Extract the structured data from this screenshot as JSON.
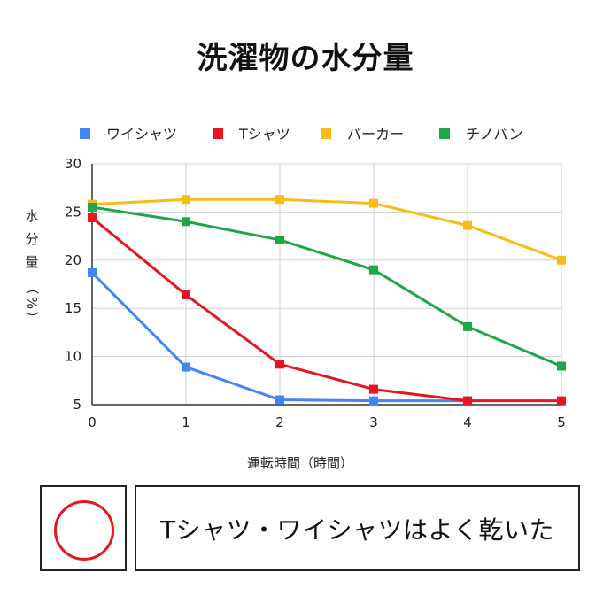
{
  "title": "洗濯物の水分量",
  "colors": {
    "ワイシャツ": "#4285f4",
    "Tシャツ": "#e8141f",
    "パーカー": "#f9bb15",
    "チノパン": "#1ea64a",
    "grid": "#d0d0d0",
    "axis": "#333333",
    "verdict_ring": "#e8141f"
  },
  "chart_data": {
    "type": "line",
    "title": "洗濯物の水分量",
    "xlabel": "運転時間（時間）",
    "ylabel": "水分量（%）",
    "ylabel_chars": [
      "水",
      "分",
      "量"
    ],
    "ylabel_unit_chars": [
      "（",
      "%",
      "）"
    ],
    "x": [
      0,
      1,
      2,
      3,
      4,
      5
    ],
    "xlim": [
      0,
      5
    ],
    "ylim": [
      5,
      30
    ],
    "yticks": [
      5,
      10,
      15,
      20,
      25,
      30
    ],
    "grid": true,
    "legend": "top",
    "marker": "square",
    "series": [
      {
        "name": "ワイシャツ",
        "values": [
          18.7,
          8.9,
          5.5,
          5.4,
          5.4,
          null
        ]
      },
      {
        "name": "Tシャツ",
        "values": [
          24.4,
          16.4,
          9.2,
          6.6,
          5.4,
          5.4
        ]
      },
      {
        "name": "パーカー",
        "values": [
          25.8,
          26.3,
          26.3,
          25.9,
          23.6,
          20.0
        ]
      },
      {
        "name": "チノパン",
        "values": [
          25.5,
          24.0,
          22.1,
          19.0,
          13.1,
          9.0
        ]
      }
    ]
  },
  "verdict": {
    "symbol": "circle",
    "message": "Tシャツ・ワイシャツはよく乾いた"
  }
}
